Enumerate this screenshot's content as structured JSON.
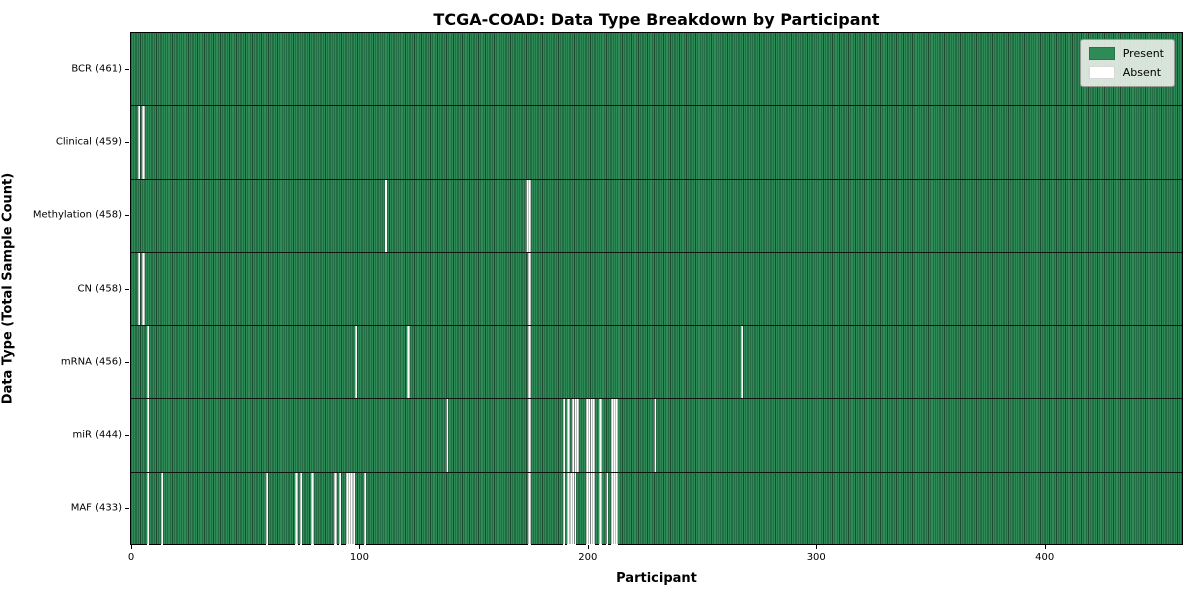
{
  "title": "TCGA-COAD: Data Type Breakdown by Participant",
  "axes": {
    "xlabel": "Participant",
    "ylabel": "Data Type (Total Sample Count)",
    "x_ticks": [
      "0",
      "100",
      "200",
      "300",
      "400"
    ]
  },
  "legend": {
    "present_label": "Present",
    "absent_label": "Absent"
  },
  "colors": {
    "present": "#2e8b57",
    "absent": "#ffffff",
    "legend_bg": "#ebf0e9",
    "row_divider": "#101510"
  },
  "chart_data": {
    "type": "heatmap",
    "title": "TCGA-COAD: Data Type Breakdown by Participant",
    "xlabel": "Participant",
    "ylabel": "Data Type (Total Sample Count)",
    "legend_entries": [
      "Present",
      "Absent"
    ],
    "legend_position": "upper right",
    "x_range": [
      0,
      461
    ],
    "x_tick_values": [
      0,
      100,
      200,
      300,
      400
    ],
    "n_participants": 461,
    "value_encoding": {
      "present": 1,
      "absent": 0
    },
    "rows": [
      {
        "label": "BCR (461)",
        "data_type": "BCR",
        "total_samples": 461,
        "absent_participants": []
      },
      {
        "label": "Clinical (459)",
        "data_type": "Clinical",
        "total_samples": 459,
        "absent_participants": [
          3,
          5
        ]
      },
      {
        "label": "Methylation (458)",
        "data_type": "Methylation",
        "total_samples": 458,
        "absent_participants": [
          111,
          173,
          174
        ]
      },
      {
        "label": "CN (458)",
        "data_type": "CN",
        "total_samples": 458,
        "absent_participants": [
          3,
          5,
          174
        ]
      },
      {
        "label": "mRNA (456)",
        "data_type": "mRNA",
        "total_samples": 456,
        "absent_participants": [
          7,
          98,
          121,
          174,
          267
        ]
      },
      {
        "label": "miR (444)",
        "data_type": "miR",
        "total_samples": 444,
        "absent_participants": [
          7,
          138,
          174,
          189,
          191,
          193,
          194,
          195,
          199,
          200,
          201,
          202,
          205,
          210,
          211,
          212,
          229
        ]
      },
      {
        "label": "MAF (433)",
        "data_type": "MAF",
        "total_samples": 433,
        "absent_participants": [
          7,
          13,
          59,
          72,
          74,
          79,
          89,
          91,
          94,
          95,
          96,
          97,
          102,
          174,
          189,
          191,
          192,
          193,
          194,
          199,
          200,
          201,
          202,
          205,
          208,
          210,
          211,
          212
        ]
      }
    ]
  }
}
